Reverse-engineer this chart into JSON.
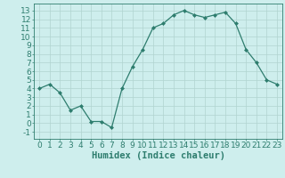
{
  "x": [
    0,
    1,
    2,
    3,
    4,
    5,
    6,
    7,
    8,
    9,
    10,
    11,
    12,
    13,
    14,
    15,
    16,
    17,
    18,
    19,
    20,
    21,
    22,
    23
  ],
  "y": [
    4,
    4.5,
    3.5,
    1.5,
    2,
    0.2,
    0.2,
    -0.5,
    4,
    6.5,
    8.5,
    11,
    11.5,
    12.5,
    13,
    12.5,
    12.2,
    12.5,
    12.8,
    11.5,
    8.5,
    7,
    5,
    4.5
  ],
  "line_color": "#2e7d6e",
  "marker": "D",
  "marker_size": 2,
  "bg_color": "#ceeeed",
  "grid_color": "#b0d4d0",
  "xlabel": "Humidex (Indice chaleur)",
  "xlim": [
    -0.5,
    23.5
  ],
  "ylim": [
    -1.8,
    13.8
  ],
  "yticks": [
    -1,
    0,
    1,
    2,
    3,
    4,
    5,
    6,
    7,
    8,
    9,
    10,
    11,
    12,
    13
  ],
  "xticks": [
    0,
    1,
    2,
    3,
    4,
    5,
    6,
    7,
    8,
    9,
    10,
    11,
    12,
    13,
    14,
    15,
    16,
    17,
    18,
    19,
    20,
    21,
    22,
    23
  ],
  "tick_label_size": 6.5,
  "xlabel_size": 7.5,
  "xlabel_weight": "bold"
}
